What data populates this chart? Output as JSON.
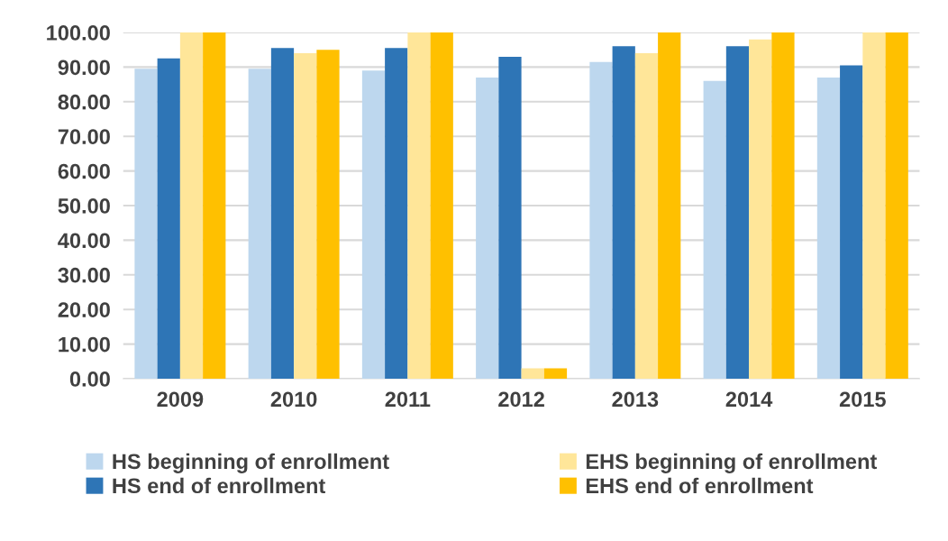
{
  "chart_data": {
    "type": "bar",
    "categories": [
      "2009",
      "2010",
      "2011",
      "2012",
      "2013",
      "2014",
      "2015"
    ],
    "series": [
      {
        "name": "HS beginning of enrollment",
        "color": "#bdd7ee",
        "values": [
          89.5,
          89.5,
          89,
          87,
          91.5,
          86,
          87
        ]
      },
      {
        "name": "HS end of enrollment",
        "color": "#2e75b6",
        "values": [
          92.5,
          95.5,
          95.5,
          93,
          96,
          96,
          90.5
        ]
      },
      {
        "name": "EHS beginning of enrollment",
        "color": "#ffe699",
        "values": [
          100,
          94,
          100,
          3,
          94,
          98,
          100
        ]
      },
      {
        "name": "EHS end of enrollment",
        "color": "#ffc000",
        "values": [
          100,
          95,
          100,
          3,
          100,
          100,
          100
        ]
      }
    ],
    "ylim": [
      0,
      100
    ],
    "yticks": [
      {
        "value": 0,
        "label": "0.00"
      },
      {
        "value": 10,
        "label": "10.00"
      },
      {
        "value": 20,
        "label": "20.00"
      },
      {
        "value": 30,
        "label": "30.00"
      },
      {
        "value": 40,
        "label": "40.00"
      },
      {
        "value": 50,
        "label": "50.00"
      },
      {
        "value": 60,
        "label": "60.00"
      },
      {
        "value": 70,
        "label": "70.00"
      },
      {
        "value": 80,
        "label": "80.00"
      },
      {
        "value": 90,
        "label": "90.00"
      },
      {
        "value": 100,
        "label": "100.00"
      }
    ],
    "grid": "y",
    "legend": "bottom"
  }
}
